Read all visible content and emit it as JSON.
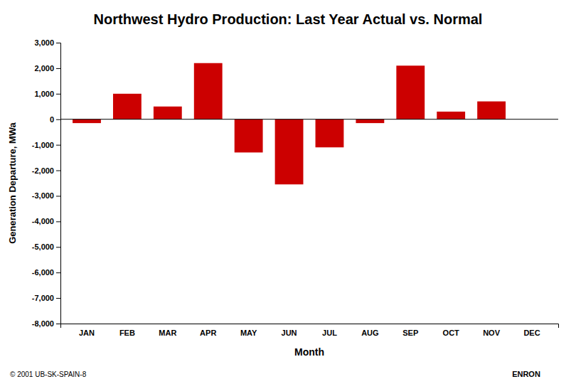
{
  "chart_data": {
    "type": "bar",
    "title": "Northwest Hydro Production: Last Year Actual vs. Normal",
    "categories": [
      "JAN",
      "FEB",
      "MAR",
      "APR",
      "MAY",
      "JUN",
      "JUL",
      "AUG",
      "SEP",
      "OCT",
      "NOV",
      "DEC"
    ],
    "values": [
      -150,
      1000,
      500,
      2200,
      -1300,
      -2550,
      -1100,
      -150,
      2100,
      300,
      700,
      0
    ],
    "color": "#CC0000",
    "ylabel": "Generation Departure, MWa",
    "xlabel": "Month",
    "ylim": [
      -8000,
      3000
    ],
    "yticks": [
      {
        "value": 3000,
        "label": "3,000"
      },
      {
        "value": 2000,
        "label": "2,000"
      },
      {
        "value": 1000,
        "label": "1,000"
      },
      0,
      {
        "value": -1000,
        "label": "-1,000"
      },
      {
        "value": -2000,
        "label": "-2,000"
      },
      {
        "value": -3000,
        "label": "-3,000"
      },
      {
        "value": -4000,
        "label": "-4,000"
      },
      {
        "value": -5000,
        "label": "-5,000"
      },
      {
        "value": -6000,
        "label": "-6,000"
      },
      {
        "value": -7000,
        "label": "-7,000"
      },
      {
        "value": -8000,
        "label": "-8,000"
      }
    ],
    "grid": false,
    "annotations": [
      "© 2001 UB-SK-SPAIN-8",
      "ENRON"
    ]
  }
}
